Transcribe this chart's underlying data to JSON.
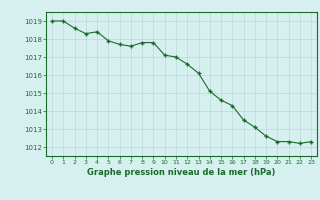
{
  "x": [
    0,
    1,
    2,
    3,
    4,
    5,
    6,
    7,
    8,
    9,
    10,
    11,
    12,
    13,
    14,
    15,
    16,
    17,
    18,
    19,
    20,
    21,
    22,
    23
  ],
  "y": [
    1019.0,
    1019.0,
    1018.6,
    1018.3,
    1018.4,
    1017.9,
    1017.7,
    1017.6,
    1017.8,
    1017.8,
    1017.1,
    1017.0,
    1016.6,
    1016.1,
    1015.1,
    1014.6,
    1014.3,
    1013.5,
    1013.1,
    1012.6,
    1012.3,
    1012.3,
    1012.2,
    1012.3
  ],
  "ylim": [
    1011.5,
    1019.5
  ],
  "yticks": [
    1012,
    1013,
    1014,
    1015,
    1016,
    1017,
    1018,
    1019
  ],
  "xticks": [
    0,
    1,
    2,
    3,
    4,
    5,
    6,
    7,
    8,
    9,
    10,
    11,
    12,
    13,
    14,
    15,
    16,
    17,
    18,
    19,
    20,
    21,
    22,
    23
  ],
  "xlabel": "Graphe pression niveau de la mer (hPa)",
  "line_color": "#1a6b2a",
  "marker_color": "#1a6b2a",
  "bg_color": "#d6f0f0",
  "grid_color": "#b8dada",
  "axis_color": "#1a6b2a",
  "tick_color": "#1a6b2a",
  "label_color": "#1a6b2a"
}
